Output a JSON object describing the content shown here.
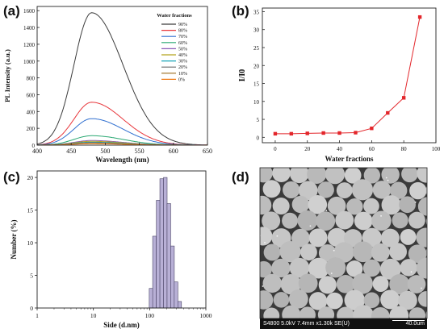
{
  "panels": {
    "a": "(a)",
    "b": "(b)",
    "c": "(c)",
    "d": "(d)"
  },
  "chart_data": [
    {
      "type": "line",
      "panel": "(a)",
      "xlabel": "Wavelength (nm)",
      "ylabel": "PL Intensity (a.u.)",
      "xlim": [
        400,
        650
      ],
      "ylim": [
        0,
        1650
      ],
      "xticks": [
        400,
        450,
        500,
        550,
        600,
        650
      ],
      "yticks": [
        0,
        200,
        400,
        600,
        800,
        1000,
        1200,
        1400,
        1600
      ],
      "legend_title": "Water fractions",
      "legend_position": "top-right",
      "series": [
        {
          "name": "90%",
          "color": "#3c3c3c",
          "peak_x": 480,
          "peak_y": 1575
        },
        {
          "name": "80%",
          "color": "#e8383d",
          "peak_x": 480,
          "peak_y": 510
        },
        {
          "name": "70%",
          "color": "#2f6fd0",
          "peak_x": 480,
          "peak_y": 315
        },
        {
          "name": "60%",
          "color": "#2aa873",
          "peak_x": 480,
          "peak_y": 112
        },
        {
          "name": "50%",
          "color": "#8b5cb8",
          "peak_x": 480,
          "peak_y": 55
        },
        {
          "name": "40%",
          "color": "#b5a31f",
          "peak_x": 480,
          "peak_y": 45
        },
        {
          "name": "30%",
          "color": "#17a5b8",
          "peak_x": 480,
          "peak_y": 35
        },
        {
          "name": "20%",
          "color": "#6b6b6b",
          "peak_x": 480,
          "peak_y": 28
        },
        {
          "name": "10%",
          "color": "#9c6b1e",
          "peak_x": 480,
          "peak_y": 22
        },
        {
          "name": "0%",
          "color": "#f07d1a",
          "peak_x": 480,
          "peak_y": 18
        }
      ]
    },
    {
      "type": "line",
      "panel": "(b)",
      "xlabel": "Water fractions",
      "ylabel": "I/I0",
      "xlim": [
        -8,
        100
      ],
      "ylim": [
        -1.5,
        36
      ],
      "xticks": [
        0,
        20,
        40,
        60,
        80,
        100
      ],
      "yticks": [
        0,
        5,
        10,
        15,
        20,
        25,
        30,
        35
      ],
      "color": "#e3262b",
      "x": [
        0,
        10,
        20,
        30,
        40,
        50,
        60,
        70,
        80,
        90
      ],
      "y": [
        1.0,
        1.0,
        1.1,
        1.2,
        1.2,
        1.3,
        2.5,
        6.8,
        11.0,
        33.5
      ]
    },
    {
      "type": "bar",
      "panel": "(c)",
      "xlabel": "Side (d.nm)",
      "ylabel": "Number (%)",
      "xscale": "log",
      "xlim": [
        1,
        1000
      ],
      "ylim": [
        0,
        21
      ],
      "xticks": [
        1,
        10,
        100,
        1000
      ],
      "yticks": [
        0,
        5,
        10,
        15,
        20
      ],
      "color": "#b8b0d6",
      "bins_x": [
        106,
        122,
        142,
        164,
        190,
        220,
        255,
        295,
        342
      ],
      "values": [
        3.0,
        11.0,
        16.5,
        19.8,
        20.0,
        16.0,
        9.5,
        4.0,
        1.0
      ]
    }
  ],
  "sem": {
    "caption_left": "S4800 5.0kV 7.4mm x1.30k SE(U)",
    "caption_right": "40.0um"
  }
}
